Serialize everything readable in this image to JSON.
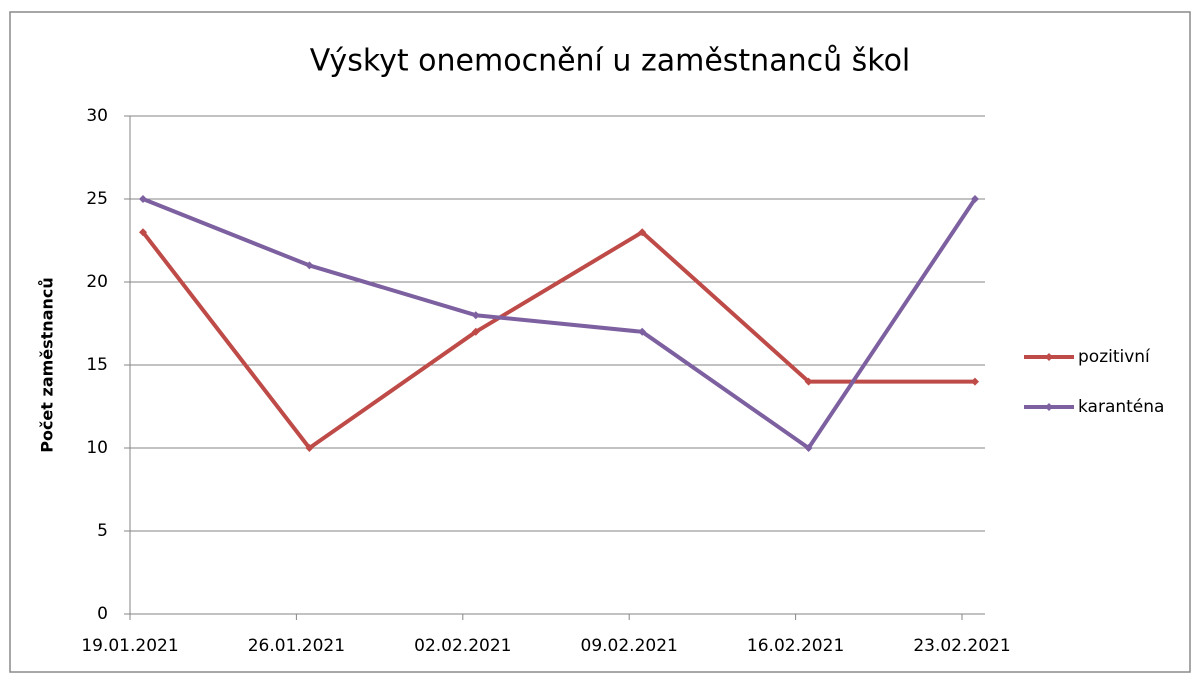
{
  "chart_data": {
    "type": "line",
    "title": "Výskyt onemocnění u zaměstnanců škol",
    "y_label": "Počet zaměstnanců",
    "categories": [
      "19.01.2021",
      "26.01.2021",
      "02.02.2021",
      "09.02.2021",
      "16.02.2021",
      "23.02.2021"
    ],
    "series": [
      {
        "name": "pozitivní",
        "color": "#be4b48",
        "values": [
          23,
          10,
          17,
          23,
          14,
          14
        ]
      },
      {
        "name": "karanténa",
        "color": "#7d60a0",
        "values": [
          25,
          21,
          18,
          17,
          10,
          25
        ]
      }
    ],
    "ylim": [
      0,
      30
    ],
    "yticks": [
      0,
      5,
      10,
      15,
      20,
      25,
      30
    ],
    "grid": true,
    "legend": "right"
  }
}
